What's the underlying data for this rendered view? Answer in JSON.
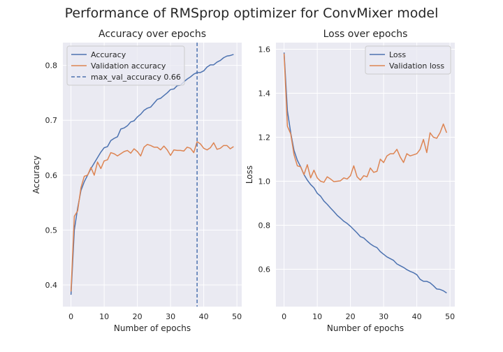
{
  "figure": {
    "title": "Performance of RMSprop optimizer for ConvMixer model"
  },
  "colors": {
    "blue": "#4c72b0",
    "orange": "#dd8452",
    "panel_bg": "#eaeaf2",
    "grid": "#ffffff"
  },
  "chart_data": [
    {
      "type": "line",
      "title": "Accuracy over epochs",
      "xlabel": "Number of epochs",
      "ylabel": "Accuracy",
      "xlim": [
        -2.45,
        51.45
      ],
      "ylim": [
        0.3605,
        0.8415
      ],
      "xticks": [
        0,
        10,
        20,
        30,
        40,
        50
      ],
      "yticks": [
        0.4,
        0.5,
        0.6,
        0.7,
        0.8
      ],
      "ytick_labels": [
        "0.4",
        "0.5",
        "0.6",
        "0.7",
        "0.8"
      ],
      "grid": true,
      "legend_position": "upper-left",
      "x": [
        0,
        1,
        2,
        3,
        4,
        5,
        6,
        7,
        8,
        9,
        10,
        11,
        12,
        13,
        14,
        15,
        16,
        17,
        18,
        19,
        20,
        21,
        22,
        23,
        24,
        25,
        26,
        27,
        28,
        29,
        30,
        31,
        32,
        33,
        34,
        35,
        36,
        37,
        38,
        39,
        40,
        41,
        42,
        43,
        44,
        45,
        46,
        47,
        48,
        49
      ],
      "series": [
        {
          "name": "Accuracy",
          "color": "#4c72b0",
          "values": [
            0.382,
            0.5,
            0.54,
            0.572,
            0.588,
            0.6,
            0.612,
            0.622,
            0.632,
            0.642,
            0.65,
            0.652,
            0.663,
            0.667,
            0.67,
            0.684,
            0.686,
            0.69,
            0.697,
            0.699,
            0.706,
            0.711,
            0.718,
            0.722,
            0.724,
            0.731,
            0.738,
            0.74,
            0.745,
            0.75,
            0.756,
            0.757,
            0.763,
            0.764,
            0.77,
            0.775,
            0.779,
            0.784,
            0.787,
            0.787,
            0.79,
            0.797,
            0.801,
            0.801,
            0.806,
            0.809,
            0.814,
            0.817,
            0.818,
            0.82
          ]
        },
        {
          "name": "Validation accuracy",
          "color": "#dd8452",
          "values": [
            0.388,
            0.525,
            0.535,
            0.577,
            0.598,
            0.6,
            0.614,
            0.6,
            0.624,
            0.612,
            0.626,
            0.628,
            0.641,
            0.639,
            0.635,
            0.639,
            0.643,
            0.645,
            0.64,
            0.648,
            0.643,
            0.635,
            0.651,
            0.656,
            0.654,
            0.651,
            0.651,
            0.646,
            0.653,
            0.646,
            0.636,
            0.646,
            0.645,
            0.645,
            0.644,
            0.651,
            0.649,
            0.641,
            0.661,
            0.657,
            0.649,
            0.646,
            0.65,
            0.659,
            0.647,
            0.649,
            0.654,
            0.654,
            0.648,
            0.652
          ]
        }
      ],
      "reference_line": {
        "label": "max_val_accuracy 0.66",
        "x": 38,
        "color": "#4c72b0"
      }
    },
    {
      "type": "line",
      "title": "Loss over epochs",
      "xlabel": "Number of epochs",
      "ylabel": "Loss",
      "xlim": [
        -2.45,
        51.45
      ],
      "ylim": [
        0.43,
        1.63
      ],
      "xticks": [
        0,
        10,
        20,
        30,
        40,
        50
      ],
      "yticks": [
        0.6,
        0.8,
        1.0,
        1.2,
        1.4,
        1.6
      ],
      "ytick_labels": [
        "0.6",
        "0.8",
        "1.0",
        "1.2",
        "1.4",
        "1.6"
      ],
      "grid": true,
      "legend_position": "upper-right",
      "x": [
        0,
        1,
        2,
        3,
        4,
        5,
        6,
        7,
        8,
        9,
        10,
        11,
        12,
        13,
        14,
        15,
        16,
        17,
        18,
        19,
        20,
        21,
        22,
        23,
        24,
        25,
        26,
        27,
        28,
        29,
        30,
        31,
        32,
        33,
        34,
        35,
        36,
        37,
        38,
        39,
        40,
        41,
        42,
        43,
        44,
        45,
        46,
        47,
        48,
        49
      ],
      "series": [
        {
          "name": "Loss",
          "color": "#4c72b0",
          "values": [
            1.585,
            1.32,
            1.22,
            1.14,
            1.095,
            1.065,
            1.03,
            1.005,
            0.985,
            0.97,
            0.945,
            0.932,
            0.91,
            0.895,
            0.878,
            0.862,
            0.845,
            0.832,
            0.818,
            0.808,
            0.795,
            0.78,
            0.765,
            0.748,
            0.742,
            0.728,
            0.715,
            0.705,
            0.698,
            0.68,
            0.668,
            0.656,
            0.648,
            0.64,
            0.624,
            0.616,
            0.608,
            0.598,
            0.59,
            0.584,
            0.575,
            0.554,
            0.545,
            0.545,
            0.538,
            0.525,
            0.51,
            0.508,
            0.502,
            0.492
          ]
        },
        {
          "name": "Validation loss",
          "color": "#dd8452",
          "values": [
            1.58,
            1.25,
            1.215,
            1.12,
            1.07,
            1.065,
            1.03,
            1.075,
            1.015,
            1.05,
            1.015,
            1.0,
            0.995,
            1.02,
            1.01,
            0.998,
            1.0,
            1.002,
            1.015,
            1.01,
            1.025,
            1.07,
            1.02,
            1.005,
            1.025,
            1.02,
            1.06,
            1.04,
            1.045,
            1.1,
            1.085,
            1.115,
            1.125,
            1.125,
            1.145,
            1.11,
            1.085,
            1.125,
            1.115,
            1.12,
            1.125,
            1.145,
            1.19,
            1.13,
            1.22,
            1.2,
            1.195,
            1.22,
            1.26,
            1.22
          ]
        }
      ]
    }
  ]
}
